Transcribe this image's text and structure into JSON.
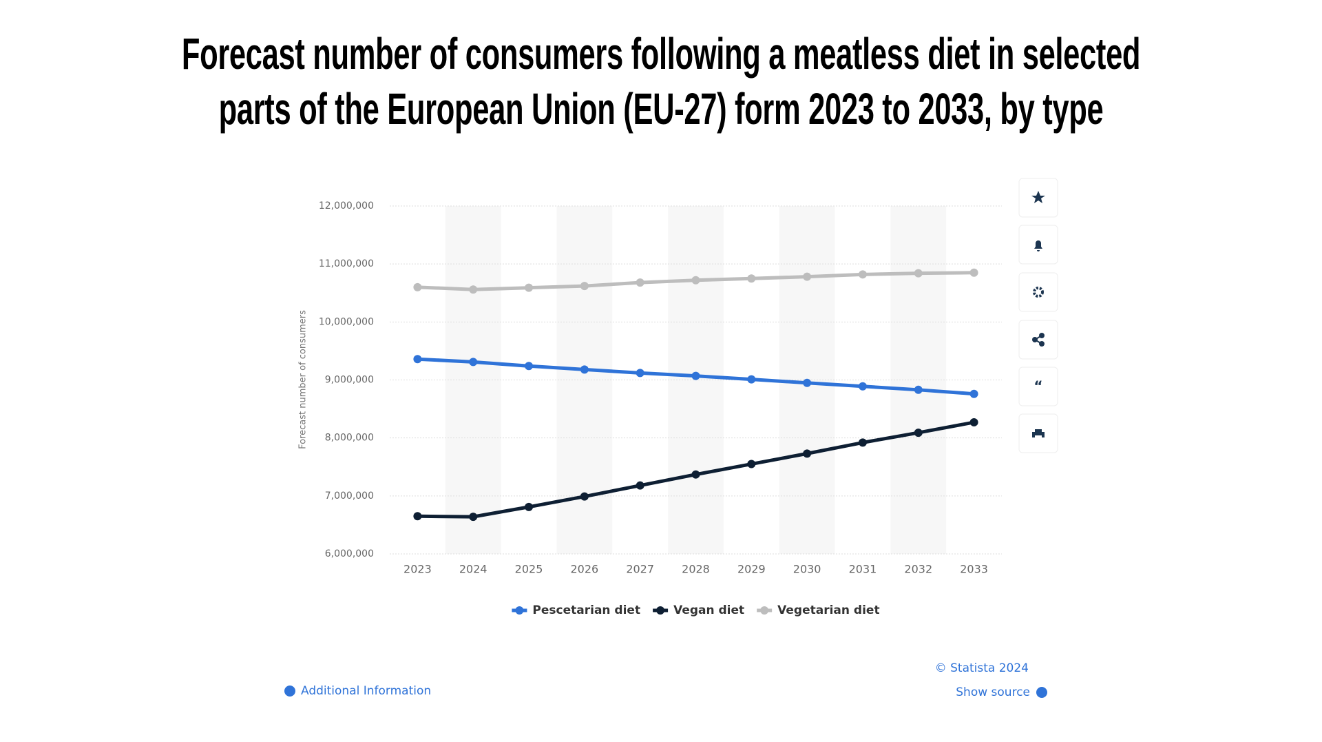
{
  "chart_data": {
    "type": "line",
    "title": "Forecast number of consumers following a meatless diet in selected parts of the European Union (EU-27) form 2023 to 2033, by type",
    "y_label": "Forecast number of consumers",
    "categories": [
      "2023",
      "2024",
      "2025",
      "2026",
      "2027",
      "2028",
      "2029",
      "2030",
      "2031",
      "2032",
      "2033"
    ],
    "series": [
      {
        "name": "Pescetarian diet",
        "color": "#2f73d8",
        "values": [
          9360000,
          9310000,
          9240000,
          9180000,
          9120000,
          9070000,
          9010000,
          8950000,
          8890000,
          8830000,
          8760000
        ]
      },
      {
        "name": "Vegan diet",
        "color": "#0e1f33",
        "values": [
          6650000,
          6640000,
          6810000,
          6990000,
          7180000,
          7370000,
          7550000,
          7730000,
          7920000,
          8090000,
          8270000
        ]
      },
      {
        "name": "Vegetarian diet",
        "color": "#bdbdbd",
        "values": [
          10600000,
          10560000,
          10590000,
          10620000,
          10680000,
          10720000,
          10750000,
          10780000,
          10820000,
          10840000,
          10850000
        ]
      }
    ],
    "ylim": [
      6000000,
      12000000
    ],
    "yticks": [
      {
        "value": 6000000,
        "label": "6,000,000"
      },
      {
        "value": 7000000,
        "label": "7,000,000"
      },
      {
        "value": 8000000,
        "label": "8,000,000"
      },
      {
        "value": 9000000,
        "label": "9,000,000"
      },
      {
        "value": 10000000,
        "label": "10,000,000"
      },
      {
        "value": 11000000,
        "label": "11,000,000"
      },
      {
        "value": 12000000,
        "label": "12,000,000"
      }
    ],
    "grid": true,
    "copyright": "© Statista 2024",
    "show_source": "Show source",
    "additional_info": "Additional Information"
  }
}
